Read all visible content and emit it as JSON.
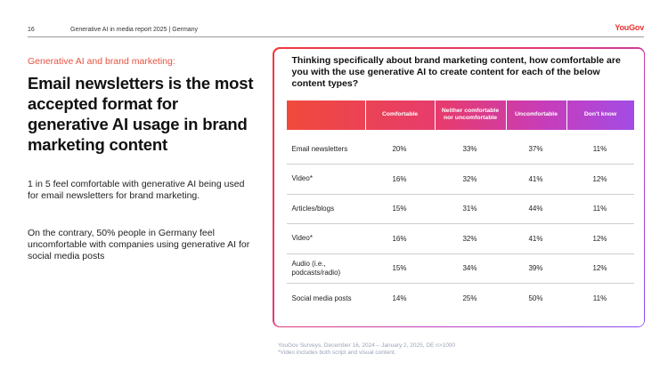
{
  "header": {
    "page_number": "16",
    "report_title": "Generative AI in media report 2025 | Germany",
    "logo": "YouGov"
  },
  "left": {
    "eyebrow": "Generative AI and brand marketing:",
    "headline": "Email newsletters is the most accepted format for generative AI usage in brand marketing content",
    "paragraph1": "1 in 5 feel comfortable with generative AI being used for email newsletters for brand marketing.",
    "paragraph2": "On the contrary, 50% people in Germany feel uncomfortable with companies using generative AI for social media posts"
  },
  "table": {
    "question": "Thinking specifically about brand marketing content, how comfortable are you with the use generative AI to create content for each of the below content types?",
    "columns": [
      "",
      "Comfortable",
      "Neither comfortable nor uncomfortable",
      "Uncomfortable",
      "Don't know"
    ],
    "rows": [
      {
        "label": "Email newsletters",
        "values": [
          "20%",
          "33%",
          "37%",
          "11%"
        ]
      },
      {
        "label": "Video*",
        "values": [
          "16%",
          "32%",
          "41%",
          "12%"
        ]
      },
      {
        "label": "Articles/blogs",
        "values": [
          "15%",
          "31%",
          "44%",
          "11%"
        ]
      },
      {
        "label": "Video*",
        "values": [
          "16%",
          "32%",
          "41%",
          "12%"
        ]
      },
      {
        "label": "Audio (i.e., podcasts/radio)",
        "values": [
          "15%",
          "34%",
          "39%",
          "12%"
        ]
      },
      {
        "label": "Social media posts",
        "values": [
          "14%",
          "25%",
          "50%",
          "11%"
        ]
      }
    ]
  },
  "footer": {
    "source_line1": "YouGov Surveys, December 16, 2024 – January 2, 2025, DE n>1000",
    "source_line2": "*Video includes both script and visual content."
  },
  "colors": {
    "accent_red": "#e8302f",
    "gradient_start": "#f04a3b",
    "gradient_end": "#a34ce5"
  }
}
